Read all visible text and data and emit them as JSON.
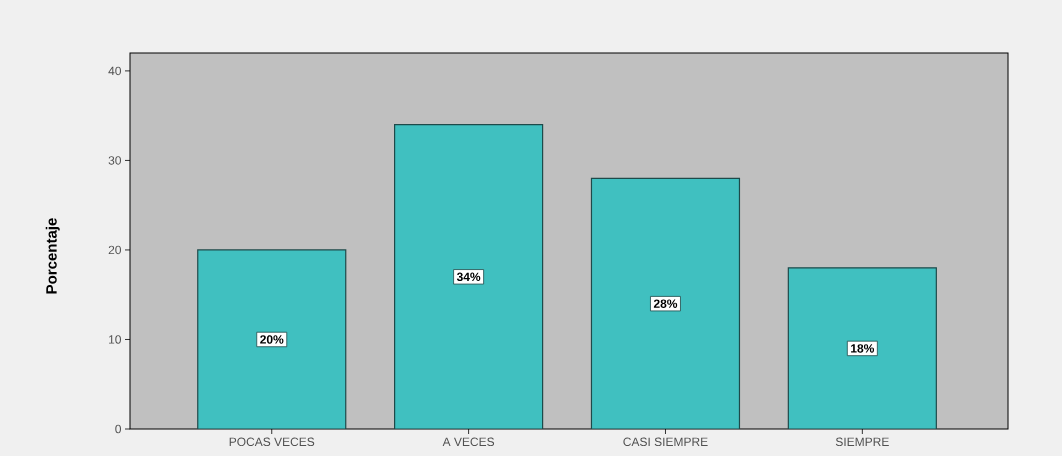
{
  "chart_data": {
    "type": "bar",
    "ylabel": "Porcentaje",
    "categories": [
      "POCAS VECES",
      "A VECES",
      "CASI SIEMPRE",
      "SIEMPRE"
    ],
    "values": [
      20,
      34,
      28,
      18
    ],
    "value_labels": [
      "20%",
      "34%",
      "28%",
      "18%"
    ],
    "color": "#40c0c0",
    "ylim": [
      0,
      42
    ],
    "yticks": [
      0,
      10,
      20,
      30,
      40
    ]
  }
}
